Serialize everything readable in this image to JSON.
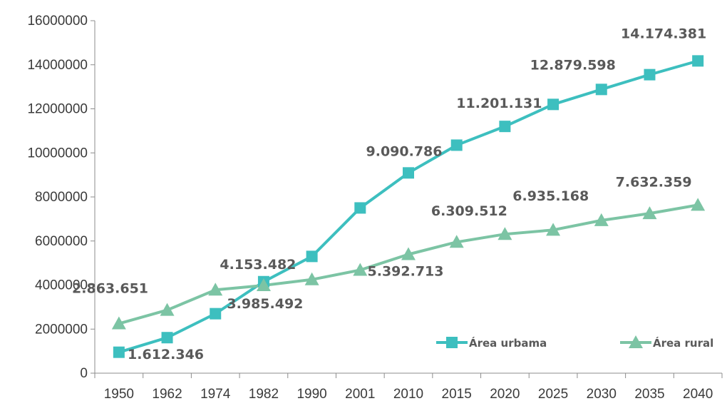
{
  "chart_data": {
    "type": "line",
    "categories": [
      "1950",
      "1962",
      "1974",
      "1982",
      "1990",
      "2001",
      "2010",
      "2015",
      "2020",
      "2025",
      "2030",
      "2035",
      "2040"
    ],
    "ylim": [
      0,
      16000000
    ],
    "yticks": [
      "0",
      "2000000",
      "4000000",
      "6000000",
      "8000000",
      "10000000",
      "12000000",
      "14000000",
      "16000000"
    ],
    "grid": false,
    "legend_position": "bottom-right",
    "series": [
      {
        "name": "Área urbama",
        "color": "#3dbfbf",
        "marker": "square",
        "values": [
          950000,
          1612346,
          2700000,
          4153482,
          5300000,
          7500000,
          9090786,
          10350000,
          11201131,
          12200000,
          12879598,
          13550000,
          14174381
        ]
      },
      {
        "name": "Área rural",
        "color": "#7cc4a4",
        "marker": "triangle",
        "values": [
          2250000,
          2863651,
          3780000,
          3985492,
          4250000,
          4680000,
          5392713,
          5950000,
          6309512,
          6500000,
          6935168,
          7250000,
          7632359
        ]
      }
    ],
    "data_labels": [
      {
        "series": 0,
        "index": 1,
        "text": "1.612.346"
      },
      {
        "series": 0,
        "index": 3,
        "text": "4.153.482"
      },
      {
        "series": 0,
        "index": 6,
        "text": "9.090.786"
      },
      {
        "series": 0,
        "index": 8,
        "text": "11.201.131"
      },
      {
        "series": 0,
        "index": 10,
        "text": "12.879.598"
      },
      {
        "series": 0,
        "index": 12,
        "text": "14.174.381"
      },
      {
        "series": 1,
        "index": 1,
        "text": "2.863.651"
      },
      {
        "series": 1,
        "index": 3,
        "text": "3.985.492"
      },
      {
        "series": 1,
        "index": 6,
        "text": "5.392.713"
      },
      {
        "series": 1,
        "index": 8,
        "text": "6.309.512"
      },
      {
        "series": 1,
        "index": 10,
        "text": "6.935.168"
      },
      {
        "series": 1,
        "index": 12,
        "text": "7.632.359"
      }
    ]
  }
}
